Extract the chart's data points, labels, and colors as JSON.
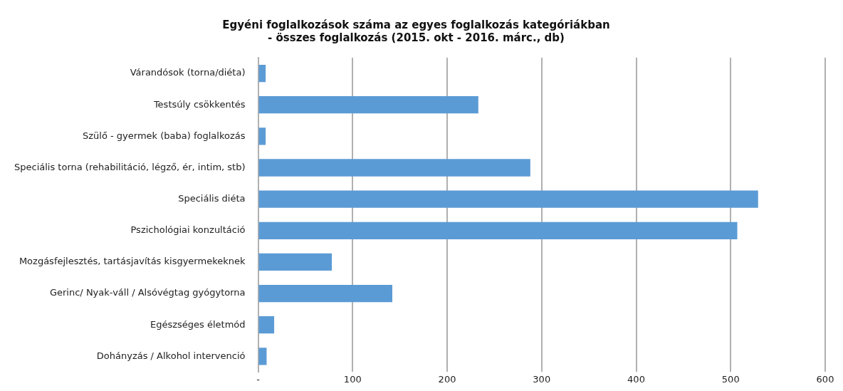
{
  "chart_data": {
    "type": "bar",
    "orientation": "horizontal",
    "title": "Egyéni foglalkozások száma az egyes foglalkozás kategóriákban\n- összes foglalkozás (2015. okt - 2016. márc., db)",
    "categories": [
      "Várandósok (torna/diéta)",
      "Testsúly csökkentés",
      "Szülő - gyermek (baba) foglalkozás",
      "Speciális torna (rehabilitáció, légző, ér, intim, stb)",
      "Speciális diéta",
      "Pszichológiai konzultáció",
      "Mozgásfejlesztés, tartásjavítás kisgyermekeknek",
      "Gerinc/ Nyak-váll / Alsóvégtag gyógytorna",
      "Egészséges életmód",
      "Dohányzás / Alkohol intervenció"
    ],
    "values": [
      8,
      233,
      8,
      288,
      529,
      507,
      78,
      142,
      17,
      9
    ],
    "color": "#5b9bd5",
    "xlim": [
      0,
      600
    ],
    "xticks": [
      {
        "value": 0,
        "label": "-"
      },
      100,
      200,
      300,
      400,
      500,
      600
    ],
    "grid": "x"
  }
}
